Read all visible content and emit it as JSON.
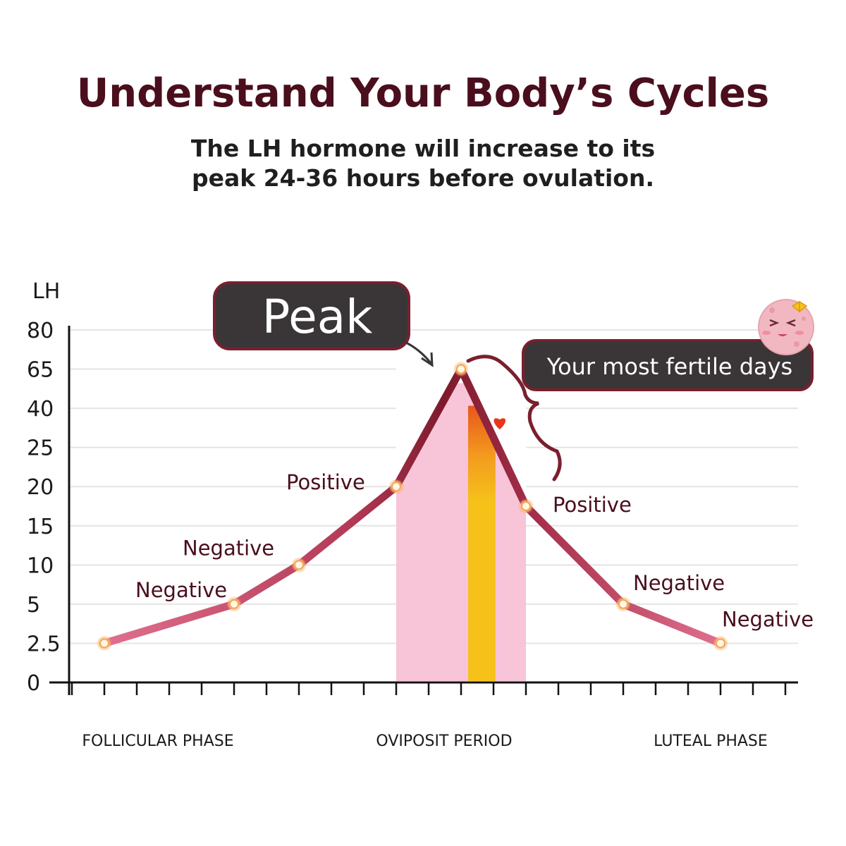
{
  "header": {
    "title": "Understand Your Body’s Cycles",
    "subtitle_line1": "The LH hormone will increase to its",
    "subtitle_line2": "peak 24-36 hours before ovulation."
  },
  "chart_data": {
    "type": "line",
    "ylabel": "LH",
    "y_ticks": [
      "0",
      "2.5",
      "5",
      "10",
      "15",
      "20",
      "25",
      "40",
      "65",
      "80"
    ],
    "points": [
      {
        "x": 1,
        "y": "2.5",
        "label": ""
      },
      {
        "x": 5,
        "y": "5",
        "label": "Negative"
      },
      {
        "x": 7,
        "y": "10",
        "label": "Negative"
      },
      {
        "x": 10,
        "y": "20",
        "label": "Positive"
      },
      {
        "x": 12,
        "y": "65",
        "label": ""
      },
      {
        "x": 14,
        "y": "17.5",
        "label": "Positive"
      },
      {
        "x": 17,
        "y": "5",
        "label": "Negative"
      },
      {
        "x": 20,
        "y": "2.5",
        "label": "Negative"
      }
    ],
    "x_ticks_count": 23,
    "shaded_range": {
      "from": 10,
      "to": 14
    },
    "ovulation_band": {
      "from": 12,
      "to": 12.8
    },
    "phase_labels": [
      "FOLLICULAR PHASE",
      "OVIPOSIT PERIOD",
      "LUTEAL PHASE"
    ],
    "annotations": {
      "peak": "Peak",
      "fertile": "Your most fertile days"
    },
    "colors": {
      "line_low": "#d9567a",
      "line_high": "#7e1a2c",
      "shade": "#f8c4d8",
      "ovulation": "#f6c21a",
      "callout": "#3a3536",
      "callout_border": "#7a1f2e"
    }
  }
}
